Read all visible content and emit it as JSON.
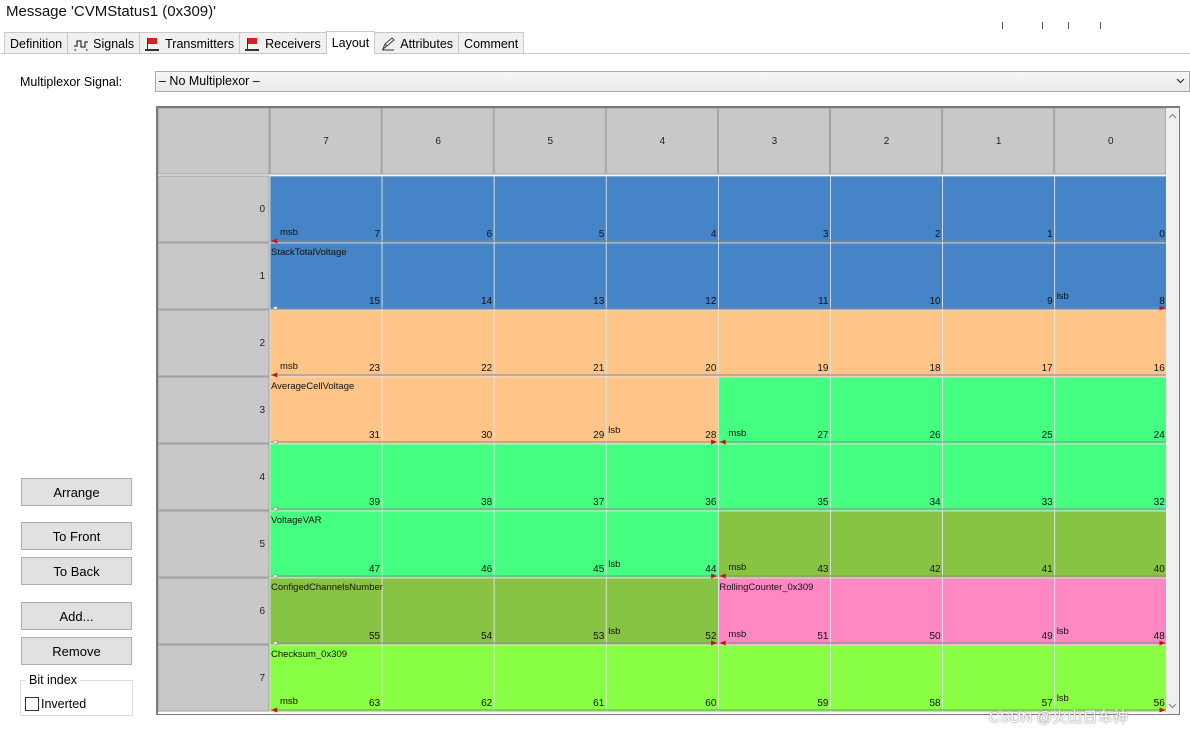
{
  "window": {
    "title": "Message 'CVMStatus1 (0x309)'"
  },
  "tabs": [
    {
      "label": "Definition",
      "icon": "none",
      "active": false
    },
    {
      "label": "Signals",
      "icon": "signal-wave-icon",
      "active": false
    },
    {
      "label": "Transmitters",
      "icon": "transmitter-flag-icon",
      "active": false
    },
    {
      "label": "Receivers",
      "icon": "receiver-flag-icon",
      "active": false
    },
    {
      "label": "Layout",
      "icon": "none",
      "active": true
    },
    {
      "label": "Attributes",
      "icon": "attribute-pencil-icon",
      "active": false
    },
    {
      "label": "Comment",
      "icon": "none",
      "active": false
    }
  ],
  "multiplexor": {
    "label": "Multiplexor Signal:",
    "value": "– No Multiplexor –"
  },
  "buttons": {
    "arrange": "Arrange",
    "to_front": "To Front",
    "to_back": "To Back",
    "add": "Add...",
    "remove": "Remove"
  },
  "bit_index": {
    "group_label": "Bit index",
    "inverted_label": "Inverted",
    "inverted_checked": false
  },
  "layout_grid": {
    "column_headers": [
      "7",
      "6",
      "5",
      "4",
      "3",
      "2",
      "1",
      "0"
    ],
    "row_headers": [
      "0",
      "1",
      "2",
      "3",
      "4",
      "5",
      "6",
      "7"
    ],
    "msb_text": "msb",
    "lsb_text": "lsb",
    "signals": [
      {
        "name": "StackTotalVoltage",
        "color": "#4484c7",
        "start_byte": 0,
        "start_col": 0,
        "end_byte": 1,
        "end_col": 7
      },
      {
        "name": "AverageCellVoltage",
        "color": "#ffc488",
        "start_byte": 2,
        "start_col": 0,
        "end_byte": 3,
        "end_col": 3
      },
      {
        "name": "VoltageVAR",
        "color": "#44ff80",
        "start_byte": 3,
        "start_col": 4,
        "end_byte": 5,
        "end_col": 3
      },
      {
        "name": "ConfigedChannelsNumber",
        "color": "#88c444",
        "start_byte": 5,
        "start_col": 4,
        "end_byte": 6,
        "end_col": 3
      },
      {
        "name": "RollingCounter_0x309",
        "color": "#ff88c4",
        "start_byte": 6,
        "start_col": 4,
        "end_byte": 6,
        "end_col": 7
      },
      {
        "name": "Checksum_0x309",
        "color": "#88ff44",
        "start_byte": 7,
        "start_col": 0,
        "end_byte": 7,
        "end_col": 7
      }
    ]
  },
  "watermark": "CSDN @火山日车神"
}
